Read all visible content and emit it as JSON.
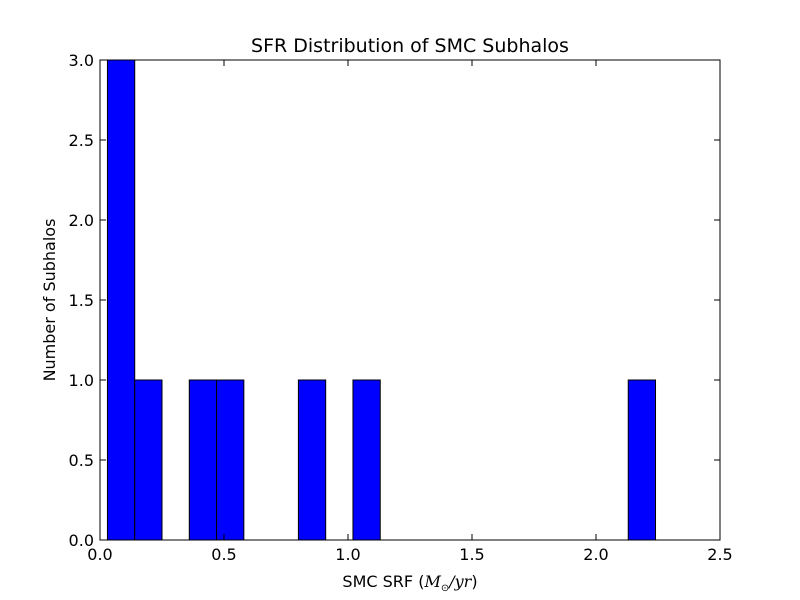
{
  "chart_data": {
    "type": "bar",
    "title": "SFR Distribution of SMC Subhalos",
    "xlabel": {
      "prefix": "SMC SRF (",
      "math": "M",
      "subscript": "⊙",
      "rest": "/yr",
      "suffix": ")"
    },
    "ylabel": "Number of Subhalos",
    "xlim": [
      0.0,
      2.5
    ],
    "ylim": [
      0.0,
      3.0
    ],
    "xticks": [
      "0.0",
      "0.5",
      "1.0",
      "1.5",
      "2.0",
      "2.5"
    ],
    "yticks": [
      "0.0",
      "0.5",
      "1.0",
      "1.5",
      "2.0",
      "2.5",
      "3.0"
    ],
    "bar_color": "#0000ff",
    "bars": [
      {
        "x0": 0.03,
        "x1": 0.14,
        "count": 3
      },
      {
        "x0": 0.14,
        "x1": 0.25,
        "count": 1
      },
      {
        "x0": 0.36,
        "x1": 0.47,
        "count": 1
      },
      {
        "x0": 0.47,
        "x1": 0.58,
        "count": 1
      },
      {
        "x0": 0.8,
        "x1": 0.91,
        "count": 1
      },
      {
        "x0": 1.02,
        "x1": 1.13,
        "count": 1
      },
      {
        "x0": 2.13,
        "x1": 2.24,
        "count": 1
      }
    ],
    "grid": false,
    "legend": "none"
  }
}
